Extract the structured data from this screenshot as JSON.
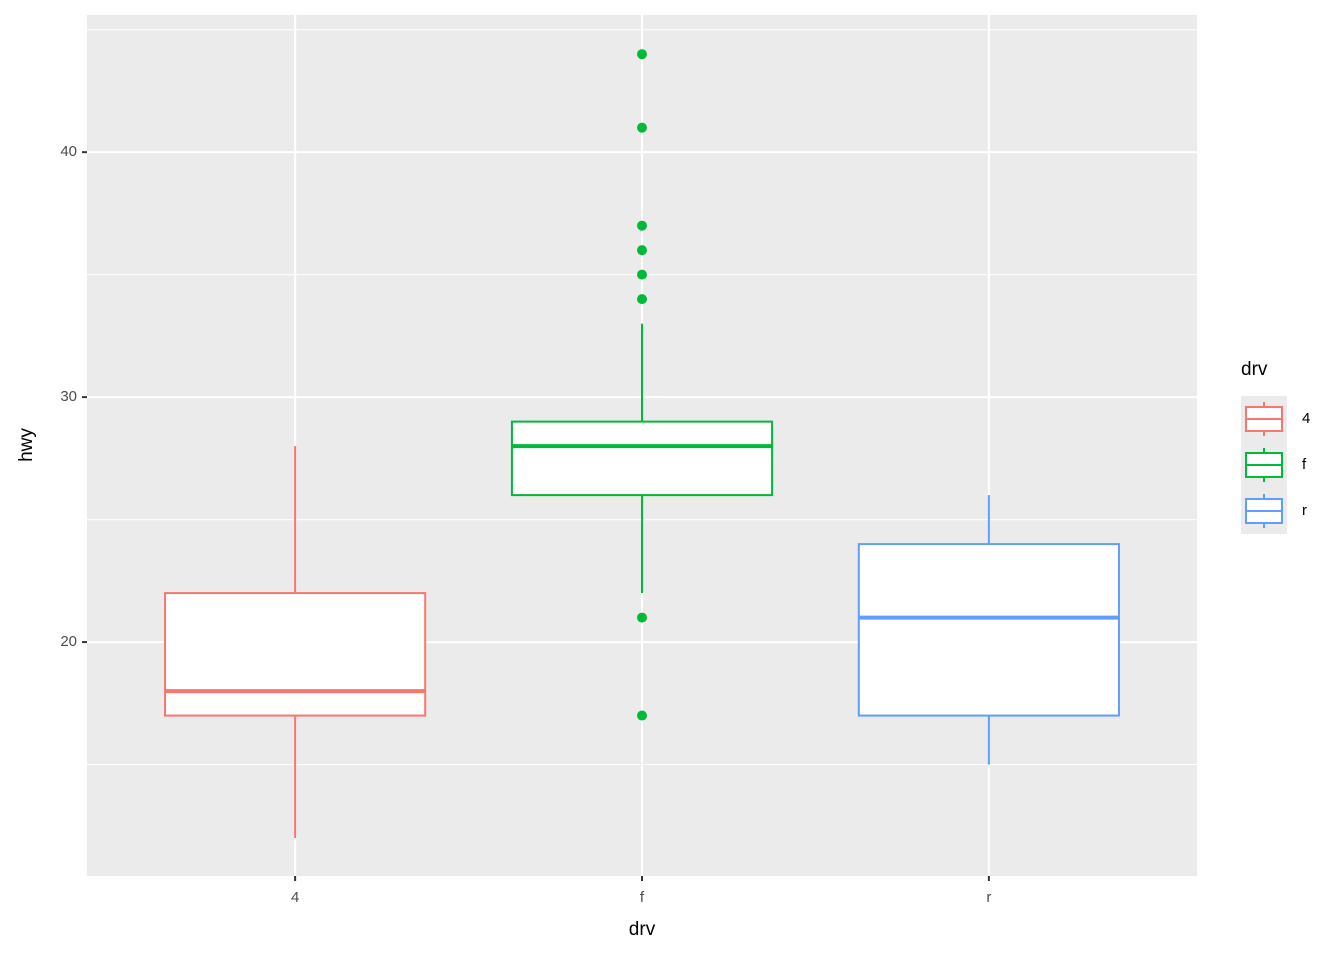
{
  "chart_data": {
    "type": "boxplot",
    "x_label": "drv",
    "y_label": "hwy",
    "categories": [
      "4",
      "f",
      "r"
    ],
    "legend_title": "drv",
    "legend_position": "right",
    "series": [
      {
        "name": "4",
        "color": "#F8766D",
        "whisker_low": 12,
        "q1": 17,
        "median": 18,
        "q3": 22,
        "whisker_high": 28,
        "outliers": []
      },
      {
        "name": "f",
        "color": "#00BA38",
        "whisker_low": 22,
        "q1": 26,
        "median": 28,
        "q3": 29,
        "whisker_high": 33,
        "outliers": [
          44,
          41,
          37,
          36,
          35,
          34,
          21,
          17
        ]
      },
      {
        "name": "r",
        "color": "#619CFF",
        "whisker_low": 15,
        "q1": 17,
        "median": 21,
        "q3": 24,
        "whisker_high": 26,
        "outliers": []
      }
    ],
    "ylim": [
      10.45,
      45.6
    ],
    "yticks": [
      20,
      30,
      40
    ],
    "minor_yticks": [
      15,
      25,
      35,
      45
    ],
    "grid": true
  }
}
